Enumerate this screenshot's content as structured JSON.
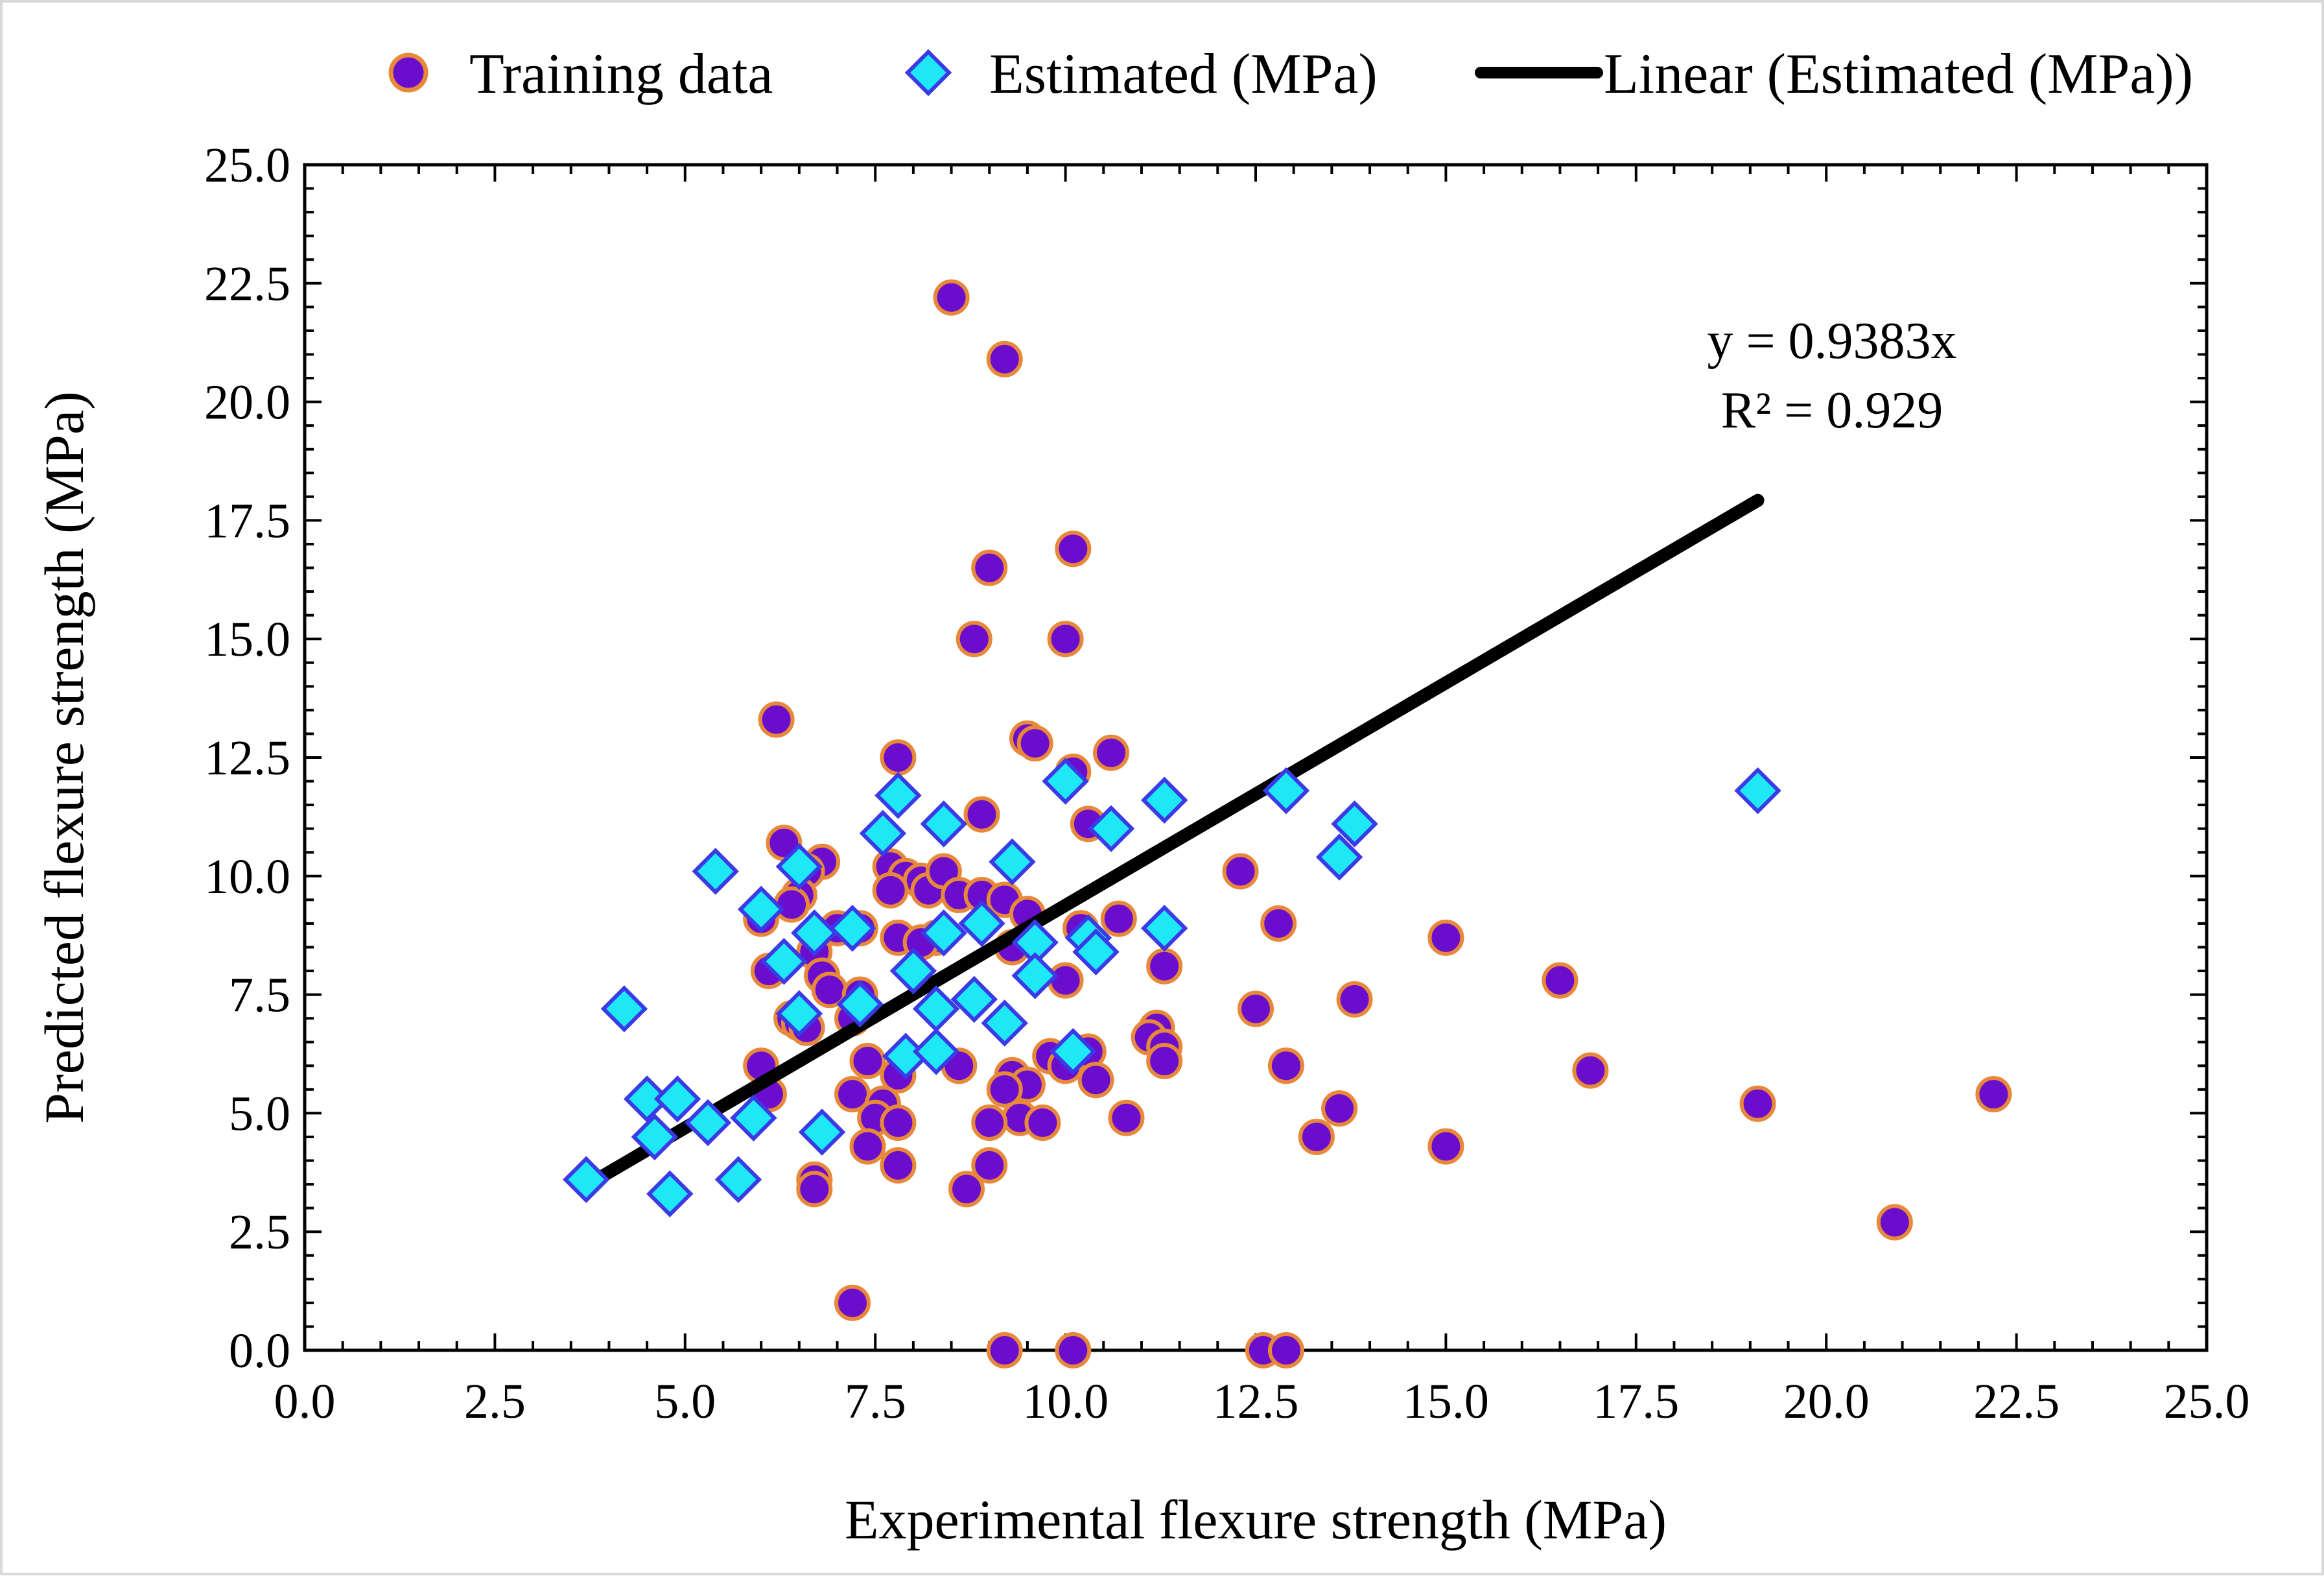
{
  "chart_data": {
    "type": "scatter",
    "title": "",
    "xlabel": "Experimental flexure strength (MPa)",
    "ylabel": "Predicted flexure strength (MPa)",
    "xlim": [
      0,
      25
    ],
    "ylim": [
      0,
      25
    ],
    "xticks": [
      "0.0",
      "2.5",
      "5.0",
      "7.5",
      "10.0",
      "12.5",
      "15.0",
      "17.5",
      "20.0",
      "22.5",
      "25.0"
    ],
    "yticks": [
      "0.0",
      "2.5",
      "5.0",
      "7.5",
      "10.0",
      "12.5",
      "15.0",
      "17.5",
      "20.0",
      "22.5",
      "25.0"
    ],
    "grid": false,
    "legend_position": "top",
    "series": [
      {
        "name": "Training data",
        "marker": "circle",
        "color": "#6a0dcc",
        "edge_color": "#e8883a",
        "points": [
          [
            8.5,
            22.2
          ],
          [
            9.2,
            20.9
          ],
          [
            10.1,
            16.9
          ],
          [
            9.0,
            16.5
          ],
          [
            8.8,
            15.0
          ],
          [
            10.0,
            15.0
          ],
          [
            6.2,
            13.3
          ],
          [
            9.5,
            12.9
          ],
          [
            9.6,
            12.8
          ],
          [
            10.6,
            12.6
          ],
          [
            7.8,
            12.5
          ],
          [
            10.1,
            12.2
          ],
          [
            8.9,
            11.3
          ],
          [
            10.3,
            11.1
          ],
          [
            6.3,
            10.7
          ],
          [
            6.8,
            10.3
          ],
          [
            6.6,
            10.1
          ],
          [
            7.7,
            10.2
          ],
          [
            7.9,
            10.0
          ],
          [
            8.1,
            9.9
          ],
          [
            8.2,
            9.7
          ],
          [
            8.4,
            10.1
          ],
          [
            12.3,
            10.1
          ],
          [
            6.5,
            9.6
          ],
          [
            6.4,
            9.4
          ],
          [
            7.7,
            9.7
          ],
          [
            8.6,
            9.6
          ],
          [
            8.9,
            9.6
          ],
          [
            9.2,
            9.5
          ],
          [
            9.5,
            9.2
          ],
          [
            10.7,
            9.1
          ],
          [
            6.0,
            9.1
          ],
          [
            7.0,
            8.9
          ],
          [
            7.3,
            8.9
          ],
          [
            12.8,
            9.0
          ],
          [
            7.8,
            8.7
          ],
          [
            8.3,
            8.7
          ],
          [
            10.2,
            8.9
          ],
          [
            8.1,
            8.6
          ],
          [
            9.3,
            8.5
          ],
          [
            15.0,
            8.7
          ],
          [
            6.7,
            8.4
          ],
          [
            11.3,
            8.1
          ],
          [
            6.1,
            8.0
          ],
          [
            6.8,
            7.9
          ],
          [
            10.0,
            7.8
          ],
          [
            16.5,
            7.8
          ],
          [
            6.9,
            7.6
          ],
          [
            7.3,
            7.5
          ],
          [
            12.5,
            7.2
          ],
          [
            13.8,
            7.4
          ],
          [
            6.4,
            7.0
          ],
          [
            6.5,
            6.9
          ],
          [
            6.6,
            6.8
          ],
          [
            7.2,
            7.0
          ],
          [
            11.2,
            6.8
          ],
          [
            11.1,
            6.6
          ],
          [
            11.3,
            6.4
          ],
          [
            10.3,
            6.3
          ],
          [
            6.0,
            6.0
          ],
          [
            7.4,
            6.1
          ],
          [
            8.6,
            6.0
          ],
          [
            9.8,
            6.2
          ],
          [
            10.0,
            6.0
          ],
          [
            11.3,
            6.1
          ],
          [
            12.9,
            6.0
          ],
          [
            7.8,
            5.8
          ],
          [
            9.3,
            5.8
          ],
          [
            9.5,
            5.6
          ],
          [
            9.2,
            5.5
          ],
          [
            10.4,
            5.7
          ],
          [
            16.9,
            5.9
          ],
          [
            6.1,
            5.4
          ],
          [
            7.2,
            5.4
          ],
          [
            7.6,
            5.2
          ],
          [
            22.2,
            5.4
          ],
          [
            19.1,
            5.2
          ],
          [
            13.6,
            5.1
          ],
          [
            7.5,
            4.9
          ],
          [
            7.8,
            4.8
          ],
          [
            9.4,
            4.9
          ],
          [
            9.7,
            4.8
          ],
          [
            9.0,
            4.8
          ],
          [
            10.8,
            4.9
          ],
          [
            13.3,
            4.5
          ],
          [
            15.0,
            4.3
          ],
          [
            7.4,
            4.3
          ],
          [
            7.8,
            3.9
          ],
          [
            9.0,
            3.9
          ],
          [
            6.7,
            3.6
          ],
          [
            6.7,
            3.4
          ],
          [
            8.7,
            3.4
          ],
          [
            20.9,
            2.7
          ],
          [
            7.2,
            1.0
          ],
          [
            9.2,
            0.0
          ],
          [
            10.1,
            0.0
          ],
          [
            12.6,
            0.0
          ],
          [
            12.9,
            0.0
          ]
        ]
      },
      {
        "name": "Estimated (MPa)",
        "marker": "diamond",
        "color": "#1ee8f6",
        "edge_color": "#3a3ae6",
        "points": [
          [
            19.1,
            11.8
          ],
          [
            12.9,
            11.8
          ],
          [
            13.8,
            11.1
          ],
          [
            13.6,
            10.4
          ],
          [
            11.3,
            11.6
          ],
          [
            10.6,
            11.0
          ],
          [
            10.0,
            12.0
          ],
          [
            7.8,
            11.7
          ],
          [
            7.6,
            10.9
          ],
          [
            8.4,
            11.1
          ],
          [
            9.3,
            10.3
          ],
          [
            6.5,
            10.2
          ],
          [
            5.4,
            10.1
          ],
          [
            6.0,
            9.3
          ],
          [
            7.2,
            8.9
          ],
          [
            6.7,
            8.8
          ],
          [
            8.4,
            8.8
          ],
          [
            8.9,
            9.0
          ],
          [
            9.6,
            8.6
          ],
          [
            10.3,
            8.7
          ],
          [
            10.4,
            8.4
          ],
          [
            11.3,
            8.9
          ],
          [
            6.3,
            8.2
          ],
          [
            8.0,
            8.0
          ],
          [
            9.6,
            7.9
          ],
          [
            7.3,
            7.3
          ],
          [
            8.3,
            7.2
          ],
          [
            8.8,
            7.4
          ],
          [
            9.2,
            6.9
          ],
          [
            6.5,
            7.1
          ],
          [
            4.2,
            7.2
          ],
          [
            7.9,
            6.2
          ],
          [
            8.3,
            6.3
          ],
          [
            10.1,
            6.3
          ],
          [
            4.5,
            5.3
          ],
          [
            4.9,
            5.3
          ],
          [
            5.3,
            4.8
          ],
          [
            5.9,
            4.9
          ],
          [
            4.6,
            4.5
          ],
          [
            6.8,
            4.6
          ],
          [
            3.7,
            3.6
          ],
          [
            5.7,
            3.6
          ],
          [
            4.8,
            3.3
          ]
        ]
      }
    ],
    "trendline": {
      "name": "Linear (Estimated (MPa))",
      "color": "#000000",
      "slope": 0.9383,
      "x_start": 3.7,
      "x_end": 19.1,
      "equation": "y = 0.9383x",
      "r_squared": "R² = 0.929"
    }
  }
}
